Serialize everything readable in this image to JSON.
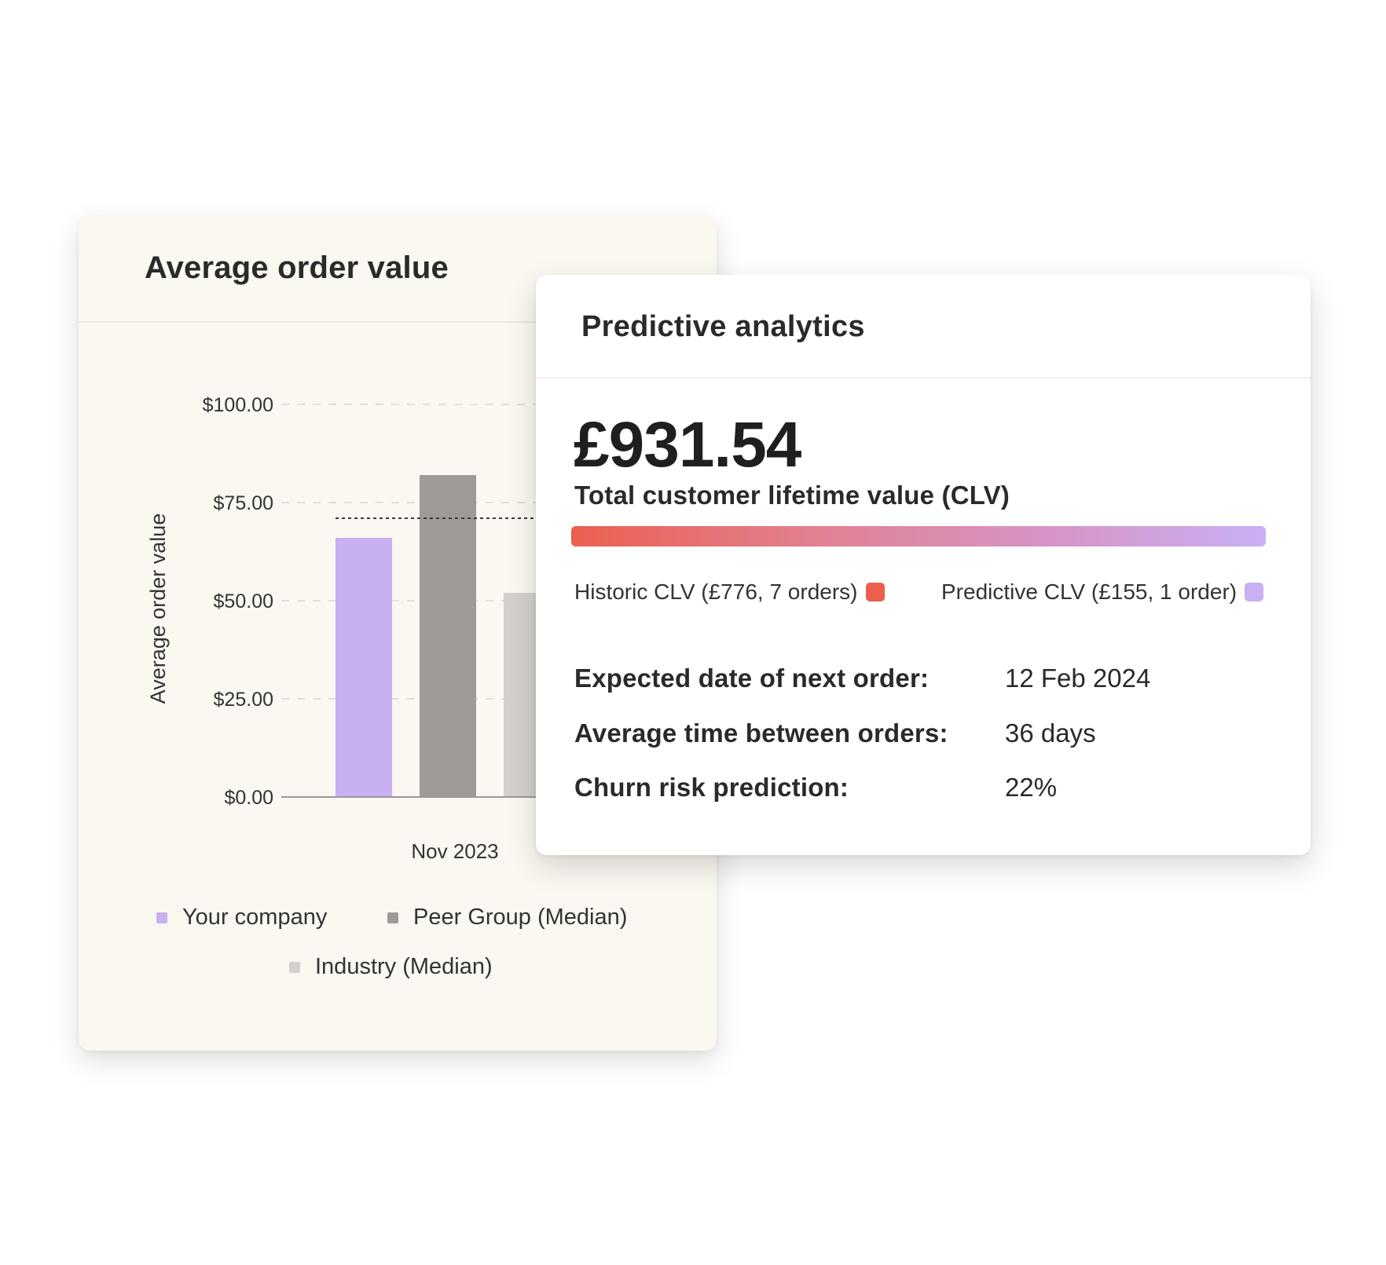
{
  "aov_card": {
    "title": "Average order value"
  },
  "chart_data": {
    "type": "bar",
    "title": "Average order value",
    "ylabel": "Average order value",
    "categories": [
      "Nov 2023"
    ],
    "yticks": [
      "$0.00",
      "$25.00",
      "$50.00",
      "$75.00",
      "$100.00"
    ],
    "ylim": [
      0,
      100
    ],
    "grid": true,
    "series": [
      {
        "name": "Your company",
        "values": [
          66
        ],
        "color": "#c7aff0"
      },
      {
        "name": "Peer Group (Median)",
        "values": [
          82
        ],
        "color": "#9e9b97"
      },
      {
        "name": "Industry (Median)",
        "values": [
          52
        ],
        "color": "#d4d1cc"
      }
    ],
    "reference_line": {
      "value": 71,
      "style": "dotted"
    },
    "legend_position": "bottom"
  },
  "pa_card": {
    "title": "Predictive analytics",
    "clv_value": "£931.54",
    "clv_label": "Total customer lifetime value (CLV)",
    "historic_share": 0.833,
    "colors": {
      "historic": "#ec5f4f",
      "predictive": "#c9b0f4"
    },
    "legend": {
      "historic": "Historic CLV (£776, 7 orders)",
      "predictive": "Predictive CLV (£155, 1 order)"
    },
    "stats": [
      {
        "label": "Expected date of next order:",
        "value": "12 Feb 2024"
      },
      {
        "label": "Average time between orders:",
        "value": "36 days"
      },
      {
        "label": "Churn risk prediction:",
        "value": "22%"
      }
    ]
  }
}
